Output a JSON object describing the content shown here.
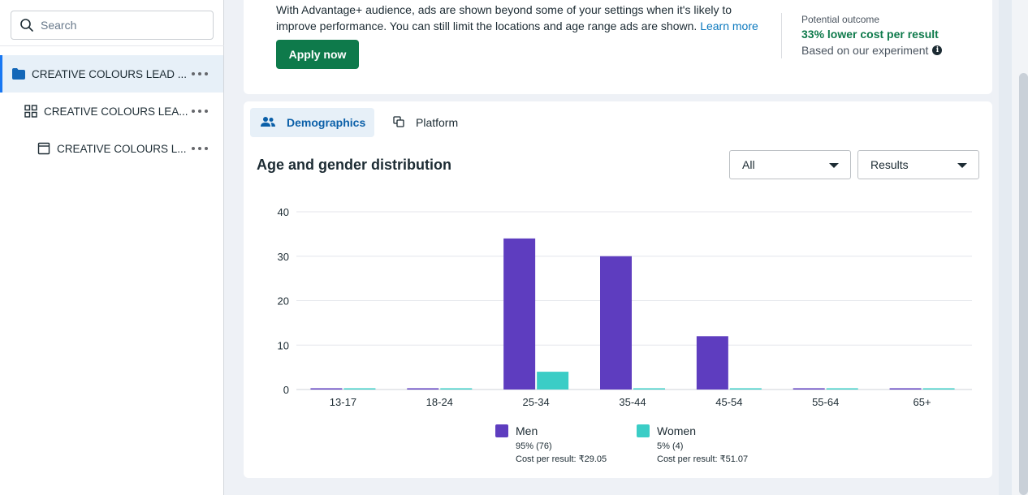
{
  "sidebar": {
    "search_placeholder": "Search",
    "items": [
      {
        "label": "CREATIVE COLOURS LEAD ...",
        "icon": "folder-icon"
      },
      {
        "label": "CREATIVE COLOURS LEA...",
        "icon": "grid-icon"
      },
      {
        "label": "CREATIVE COLOURS L...",
        "icon": "ad-icon"
      }
    ]
  },
  "advantage": {
    "line1": "With Advantage+ audience, ads are shown beyond some of your settings when it's likely to",
    "line2": "improve performance. You can still limit the locations and age range ads are shown.",
    "learn_more": "Learn more",
    "apply_button": "Apply now",
    "outcome_label": "Potential outcome",
    "outcome_value": "33% lower cost per result",
    "outcome_note": "Based on our experiment"
  },
  "tabs": {
    "demographics": "Demographics",
    "platform": "Platform"
  },
  "section": {
    "title": "Age and gender distribution",
    "filter_value": "All",
    "metric_value": "Results"
  },
  "chart_data": {
    "type": "bar",
    "title": "Age and gender distribution",
    "categories": [
      "13-17",
      "18-24",
      "25-34",
      "35-44",
      "45-54",
      "55-64",
      "65+"
    ],
    "series": [
      {
        "name": "Men",
        "values": [
          0,
          0,
          34,
          30,
          12,
          0,
          0
        ]
      },
      {
        "name": "Women",
        "values": [
          0,
          0,
          4,
          0,
          0,
          0,
          0
        ]
      }
    ],
    "yticks": [
      0,
      10,
      20,
      30,
      40
    ],
    "ylim": [
      0,
      40
    ],
    "grid": true,
    "legend_position": "bottom"
  },
  "legend": [
    {
      "name": "Men",
      "share": "95% (76)",
      "cost": "Cost per result: ₹29.05",
      "color": "#5e3dbf"
    },
    {
      "name": "Women",
      "share": "5% (4)",
      "cost": "Cost per result: ₹51.07",
      "color": "#3bcdc6"
    }
  ],
  "colors": {
    "accent": "#0e7a4b",
    "link": "#0a78be",
    "men": "#5e3dbf",
    "women": "#3bcdc6"
  }
}
